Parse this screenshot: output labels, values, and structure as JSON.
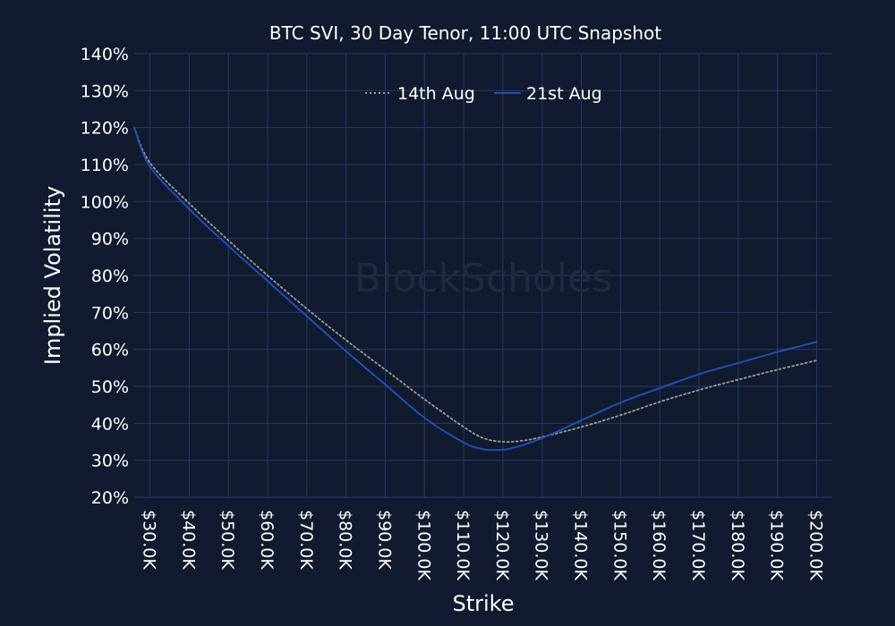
{
  "chart_data": {
    "type": "line",
    "title": "BTC SVI, 30 Day Tenor, 11:00 UTC Snapshot",
    "xlabel": "Strike",
    "ylabel": "Implied Volatility",
    "xlim": [
      26000,
      204000
    ],
    "ylim": [
      20,
      140
    ],
    "y_ticks": [
      20,
      30,
      40,
      50,
      60,
      70,
      80,
      90,
      100,
      110,
      120,
      130,
      140
    ],
    "y_tick_labels": [
      "20%",
      "30%",
      "40%",
      "50%",
      "60%",
      "70%",
      "80%",
      "90%",
      "100%",
      "110%",
      "120%",
      "130%",
      "140%"
    ],
    "x_ticks": [
      30000,
      40000,
      50000,
      60000,
      70000,
      80000,
      90000,
      100000,
      110000,
      120000,
      130000,
      140000,
      150000,
      160000,
      170000,
      180000,
      190000,
      200000
    ],
    "x_tick_labels": [
      "$30.0K",
      "$40.0K",
      "$50.0K",
      "$60.0K",
      "$70.0K",
      "$80.0K",
      "$90.0K",
      "$100.0K",
      "$110.0K",
      "$120.0K",
      "$130.0K",
      "$140.0K",
      "$150.0K",
      "$160.0K",
      "$170.0K",
      "$180.0K",
      "$190.0K",
      "$200.0K"
    ],
    "grid": true,
    "legend_position": "top-center",
    "background_color": "#111a2e",
    "grid_color": "#26386a",
    "series": [
      {
        "name": "14th Aug",
        "color": "#9a9a9a",
        "line_style": "dotted",
        "x": [
          26000,
          30000,
          40000,
          50000,
          60000,
          70000,
          80000,
          90000,
          100000,
          110000,
          115000,
          120000,
          125000,
          130000,
          140000,
          150000,
          160000,
          170000,
          180000,
          190000,
          200000
        ],
        "y": [
          120,
          110.5,
          99.5,
          89.5,
          80,
          71,
          62.5,
          54.5,
          46.5,
          39,
          36,
          35,
          35.3,
          36.3,
          39,
          42.2,
          45.8,
          49,
          51.8,
          54.5,
          57
        ]
      },
      {
        "name": "21st Aug",
        "color": "#1f4fb5",
        "line_style": "solid",
        "x": [
          26000,
          30000,
          40000,
          50000,
          60000,
          70000,
          80000,
          90000,
          100000,
          110000,
          115000,
          118000,
          122000,
          130000,
          140000,
          150000,
          160000,
          170000,
          180000,
          190000,
          200000
        ],
        "y": [
          120,
          109.5,
          98,
          88,
          78.5,
          69,
          59.5,
          50.5,
          41.5,
          34.8,
          33,
          32.8,
          33.2,
          36,
          40.8,
          45.6,
          49.5,
          53.3,
          56.3,
          59.3,
          62
        ]
      }
    ]
  },
  "watermark": {
    "text": "BlockScholes"
  }
}
